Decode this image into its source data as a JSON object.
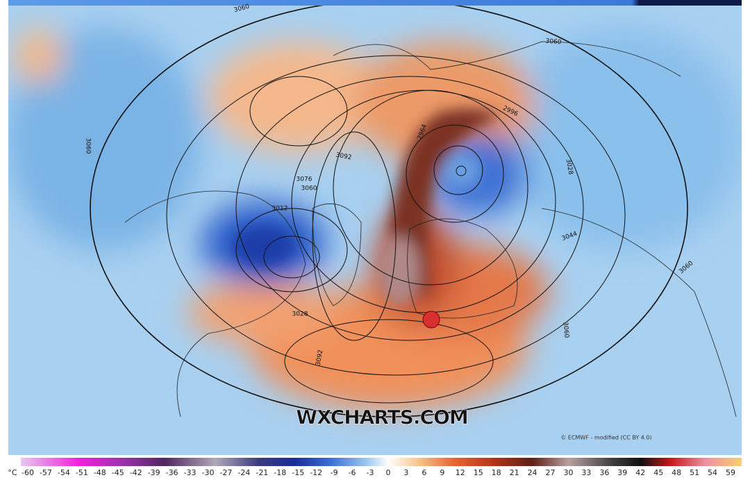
{
  "map": {
    "watermark": "WXCHARTS.COM",
    "credit": "© ECMWF - modified (CC BY 4.0)",
    "contour_labels": [
      "3060",
      "3060",
      "3060",
      "3076",
      "3060",
      "3092",
      "2996",
      "2964",
      "3028",
      "3044",
      "3060",
      "3060",
      "3092",
      "3028",
      "3012"
    ]
  },
  "colorbar": {
    "unit": "°C",
    "ticks": [
      -60,
      -57,
      -54,
      -51,
      -48,
      -45,
      -42,
      -39,
      -36,
      -33,
      -30,
      -27,
      -24,
      -21,
      -18,
      -15,
      -12,
      -9,
      -6,
      -3,
      0,
      3,
      6,
      9,
      12,
      15,
      18,
      21,
      24,
      27,
      30,
      33,
      36,
      39,
      42,
      45,
      48,
      51,
      54,
      59
    ]
  }
}
